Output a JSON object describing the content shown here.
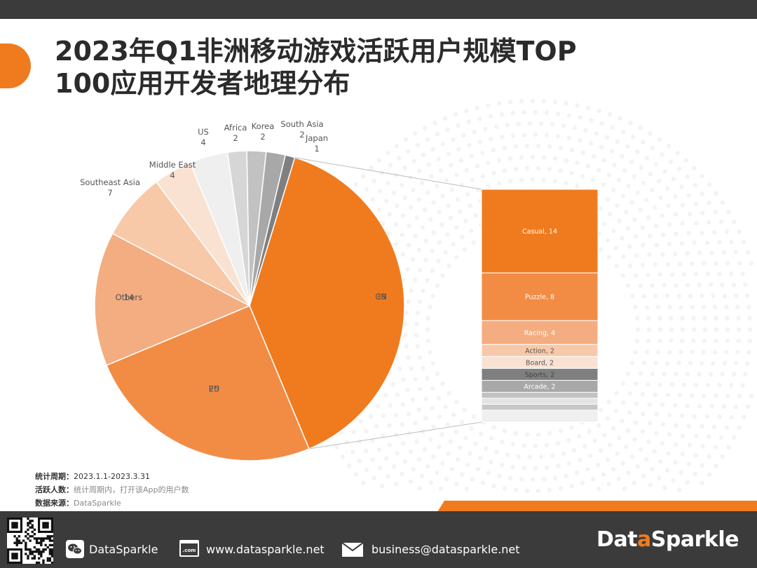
{
  "title_line1": "2023年Q1非洲移动游戏活跃用户规模TOP",
  "title_line2": "100应用开发者地理分布",
  "chart_data": [
    {
      "type": "pie",
      "slices": [
        {
          "name": "CN",
          "value": 39,
          "color": "#f07b1e"
        },
        {
          "name": "EU",
          "value": 25,
          "color": "#f28c45"
        },
        {
          "name": "Others",
          "value": 14,
          "color": "#f4ad80"
        },
        {
          "name": "Southeast Asia",
          "value": 7,
          "color": "#f7c9a9"
        },
        {
          "name": "Middle East",
          "value": 4,
          "color": "#fae2d2"
        },
        {
          "name": "US",
          "value": 4,
          "color": "#efefef"
        },
        {
          "name": "Africa",
          "value": 2,
          "color": "#d6d6d6"
        },
        {
          "name": "Korea",
          "value": 2,
          "color": "#c2c2c2"
        },
        {
          "name": "South Asia",
          "value": 2,
          "color": "#a8a8a8"
        },
        {
          "name": "Japan",
          "value": 1,
          "color": "#7f7f7f"
        }
      ]
    },
    {
      "type": "bar",
      "stacked": true,
      "categories": [
        "Casual",
        "Puzzle",
        "Racing",
        "Action",
        "Board",
        "Sports",
        "Arcade",
        "",
        "",
        "",
        ""
      ],
      "values": [
        14,
        8,
        4,
        2,
        2,
        2,
        2,
        1,
        1,
        1,
        2
      ],
      "labels": [
        "Casual, 14",
        "Puzzle, 8",
        "Racing, 4",
        "Action, 2",
        "Board, 2",
        "Sports, 2",
        "Arcade, 2",
        "",
        "",
        "",
        ""
      ],
      "colors": [
        "#f07b1e",
        "#f28c45",
        "#f4ad80",
        "#f7c9a9",
        "#fae2d2",
        "#7f7f7f",
        "#a8a8a8",
        "#c2c2c2",
        "#e3e3e3",
        "#c8c8c8",
        "#f0f0f0"
      ],
      "label_colors": [
        "#ffffff",
        "#ffffff",
        "#ffffff",
        "#555555",
        "#555555",
        "#444444",
        "#ffffff",
        "",
        "",
        "",
        ""
      ]
    }
  ],
  "notes": [
    {
      "key": "统计周期：",
      "value": "2023.1.1-2023.3.31"
    },
    {
      "key": "活跃人数：",
      "value": "统计周期内，打开该App的用户数"
    },
    {
      "key": "数据来源：",
      "value": "DataSparkle"
    }
  ],
  "footer": {
    "wechat": "DataSparkle",
    "web_icon_text": ".com",
    "website": "www.datasparkle.net",
    "email": "business@datasparkle.net",
    "brand_left": "Dat",
    "brand_accent": "a",
    "brand_right": "Sparkle"
  }
}
